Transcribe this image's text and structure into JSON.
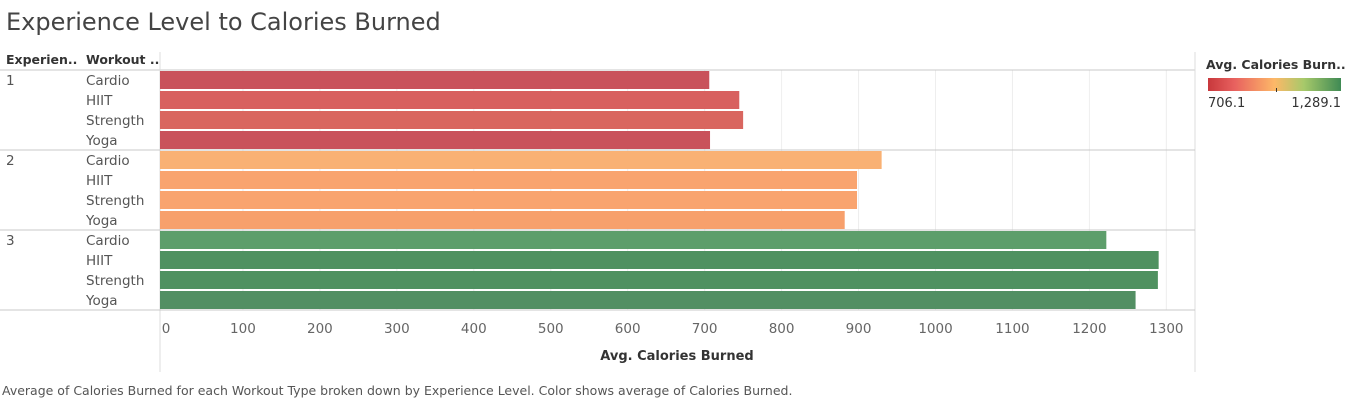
{
  "title": "Experience Level to Calories Burned",
  "caption": "Average of Calories Burned for each Workout Type broken down by Experience Level.  Color shows average of Calories Burned.",
  "legend": {
    "title": "Avg. Calories Burn..",
    "min_label": "706.1",
    "max_label": "1,289.1",
    "colors": [
      "#c8383c",
      "#e8615f",
      "#fdb868",
      "#a7c96a",
      "#3f8a54"
    ]
  },
  "chart_data": {
    "type": "bar",
    "orientation": "horizontal",
    "row_headers": [
      "Experien..",
      "Workout .."
    ],
    "x_axis_label": "Avg. Calories Burned",
    "x_ticks": [
      0,
      100,
      200,
      300,
      400,
      500,
      600,
      700,
      800,
      900,
      1000,
      1100,
      1200,
      1300
    ],
    "xlim": [
      0,
      1350
    ],
    "groups": [
      {
        "level": "1",
        "bars": [
          {
            "workout": "Cardio",
            "value": 706,
            "color": "#c9525b"
          },
          {
            "workout": "HIIT",
            "value": 745,
            "color": "#d8605f"
          },
          {
            "workout": "Strength",
            "value": 750,
            "color": "#d9665f"
          },
          {
            "workout": "Yoga",
            "value": 707,
            "color": "#c9525b"
          }
        ]
      },
      {
        "level": "2",
        "bars": [
          {
            "workout": "Cardio",
            "value": 930,
            "color": "#f9b174"
          },
          {
            "workout": "HIIT",
            "value": 898,
            "color": "#f9a46f"
          },
          {
            "workout": "Strength",
            "value": 898,
            "color": "#f9a46f"
          },
          {
            "workout": "Yoga",
            "value": 882,
            "color": "#f7a06c"
          }
        ]
      },
      {
        "level": "3",
        "bars": [
          {
            "workout": "Cardio",
            "value": 1222,
            "color": "#5d9e6b"
          },
          {
            "workout": "HIIT",
            "value": 1290,
            "color": "#4f9160"
          },
          {
            "workout": "Strength",
            "value": 1289,
            "color": "#4f9160"
          },
          {
            "workout": "Yoga",
            "value": 1260,
            "color": "#528f63"
          }
        ]
      }
    ]
  }
}
